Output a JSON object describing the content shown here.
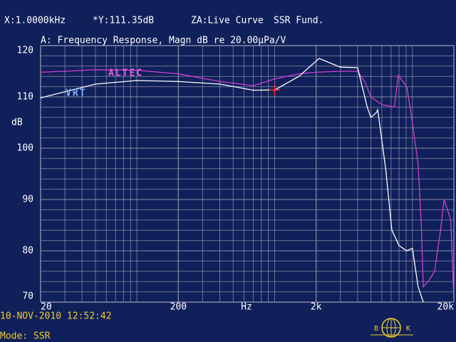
{
  "header": {
    "x_readout": "X:1.0000kHz",
    "y_readout": "*Y:111.35dB",
    "curve_mode": "ZA:Live Curve",
    "analysis": "SSR Fund."
  },
  "footer": {
    "timestamp": "10-NOV-2010 12:52:42",
    "mode": "Mode: SSR",
    "logo_left": "B",
    "logo_right": "K"
  },
  "chart_data": {
    "type": "line",
    "title": "A: Frequency Response, Magn dB re 20.00µPa/V",
    "x_label": "Hz",
    "y_label": "dB",
    "x_log": true,
    "grid": true,
    "minor_grid": true,
    "xlim": [
      20,
      20000
    ],
    "ylim": [
      70,
      120
    ],
    "xticks": [
      20,
      200,
      {
        "value": 2000,
        "label": "2k"
      },
      {
        "value": 20000,
        "label": "20k"
      }
    ],
    "yticks": [
      70,
      80,
      90,
      100,
      110,
      120
    ],
    "cursor": {
      "x": 1000,
      "y": 111.35,
      "color": "#ff3030"
    },
    "series": [
      {
        "name": "ALTEC",
        "color": "#d040d0",
        "label_color": "#e060e0",
        "x": [
          20,
          30,
          50,
          100,
          200,
          400,
          700,
          1000,
          1500,
          2000,
          3000,
          4000,
          4500,
          5000,
          6000,
          7400,
          7900,
          9100,
          10000,
          11000,
          11600,
          12000,
          13000,
          14500,
          16000,
          17000,
          19000,
          20000
        ],
        "values": [
          114.8,
          115,
          115.3,
          115.2,
          114.5,
          113,
          112.2,
          113.5,
          114.5,
          114.8,
          115,
          115,
          113,
          110,
          108.5,
          108,
          114.2,
          112,
          105,
          97,
          85,
          73,
          74,
          76,
          84,
          90,
          86,
          70
        ]
      },
      {
        "name": "VRT",
        "color": "#ffffff",
        "label_color": "#80b0ff",
        "x": [
          20,
          30,
          50,
          100,
          200,
          400,
          700,
          1000,
          1500,
          2100,
          3000,
          4000,
          4700,
          5000,
          5500,
          5600,
          6400,
          7100,
          8000,
          9100,
          10000,
          11000,
          12000
        ],
        "values": [
          109.8,
          111,
          112.5,
          113.2,
          113,
          112.5,
          111.3,
          111.35,
          114,
          117.5,
          115.8,
          115.7,
          108,
          106,
          107,
          107.5,
          96,
          84,
          81,
          80,
          80.5,
          73,
          70
        ]
      }
    ]
  }
}
